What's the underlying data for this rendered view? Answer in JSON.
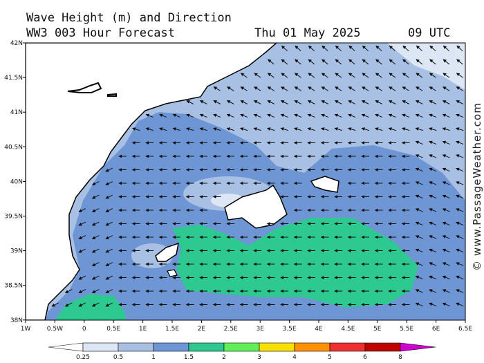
{
  "header": {
    "title": "Wave Height (m) and Direction",
    "subtitle": "WW3 003 Hour Forecast",
    "date": "Thu 01 May 2025",
    "time": "09 UTC"
  },
  "map": {
    "lat_labels": [
      "42N",
      "41.5N",
      "41N",
      "40.5N",
      "40N",
      "39.5N",
      "39N",
      "38.5N",
      "38N"
    ],
    "lon_labels": [
      "1W",
      "0.5W",
      "0",
      "0.5E",
      "1E",
      "1.5E",
      "2E",
      "2.5E",
      "3E",
      "3.5E",
      "4E",
      "4.5E",
      "5E",
      "5.5E",
      "6E",
      "6.5E"
    ]
  },
  "legend": {
    "labels": [
      "0.25",
      "0.5",
      "1",
      "1.5",
      "2",
      "3",
      "4",
      "5",
      "6",
      "8"
    ],
    "colors": [
      "#ffffff",
      "#dde6f4",
      "#a8c0e4",
      "#6f96d4",
      "#2ec990",
      "#5ff05a",
      "#f8e000",
      "#ff9000",
      "#f03030",
      "#c00000",
      "#d000d0"
    ]
  },
  "watermark": "© www.PassageWeather.com"
}
